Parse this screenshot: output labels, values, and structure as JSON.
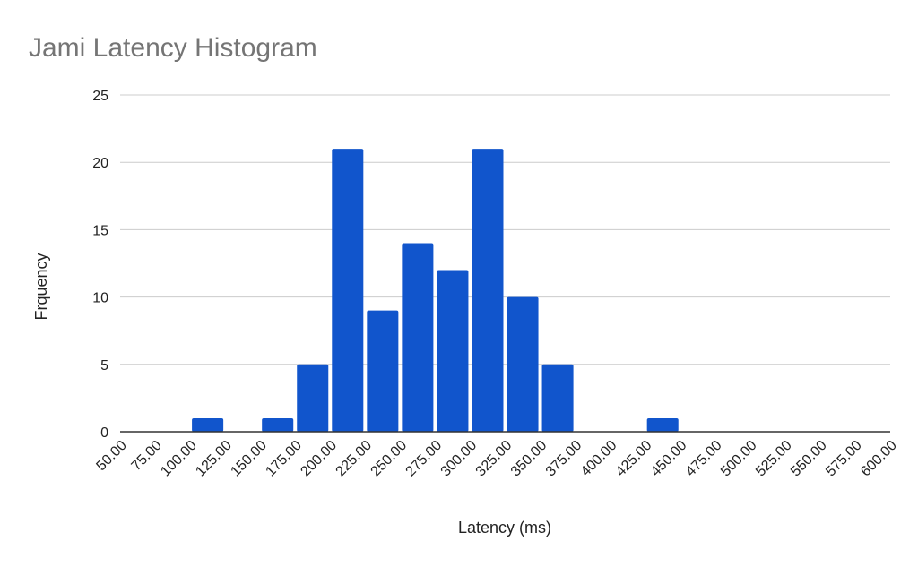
{
  "chart_data": {
    "type": "bar",
    "title": "Jami Latency Histogram",
    "xlabel": "Latency (ms)",
    "ylabel": "Frquency",
    "x_tick_labels": [
      "50.00",
      "75.00",
      "100.00",
      "125.00",
      "150.00",
      "175.00",
      "200.00",
      "225.00",
      "250.00",
      "275.00",
      "300.00",
      "325.00",
      "350.00",
      "375.00",
      "400.00",
      "425.00",
      "450.00",
      "475.00",
      "500.00",
      "525.00",
      "550.00",
      "575.00",
      "600.00"
    ],
    "y_ticks": [
      0,
      5,
      10,
      15,
      20,
      25
    ],
    "ylim": [
      0,
      25
    ],
    "xlim": [
      50,
      600
    ],
    "bins": [
      {
        "start": 50,
        "end": 75,
        "value": 0
      },
      {
        "start": 75,
        "end": 100,
        "value": 0
      },
      {
        "start": 100,
        "end": 125,
        "value": 1
      },
      {
        "start": 125,
        "end": 150,
        "value": 0
      },
      {
        "start": 150,
        "end": 175,
        "value": 1
      },
      {
        "start": 175,
        "end": 200,
        "value": 5
      },
      {
        "start": 200,
        "end": 225,
        "value": 21
      },
      {
        "start": 225,
        "end": 250,
        "value": 9
      },
      {
        "start": 250,
        "end": 275,
        "value": 14
      },
      {
        "start": 275,
        "end": 300,
        "value": 12
      },
      {
        "start": 300,
        "end": 325,
        "value": 21
      },
      {
        "start": 325,
        "end": 350,
        "value": 10
      },
      {
        "start": 350,
        "end": 375,
        "value": 5
      },
      {
        "start": 375,
        "end": 400,
        "value": 0
      },
      {
        "start": 400,
        "end": 425,
        "value": 0
      },
      {
        "start": 425,
        "end": 450,
        "value": 1
      },
      {
        "start": 450,
        "end": 475,
        "value": 0
      },
      {
        "start": 475,
        "end": 500,
        "value": 0
      },
      {
        "start": 500,
        "end": 525,
        "value": 0
      },
      {
        "start": 525,
        "end": 550,
        "value": 0
      },
      {
        "start": 550,
        "end": 575,
        "value": 0
      },
      {
        "start": 575,
        "end": 600,
        "value": 0
      }
    ],
    "bar_color": "#1155cc",
    "grid": true,
    "gridline_color": "#cccccc",
    "baseline_color": "#333333",
    "legend": "none"
  }
}
